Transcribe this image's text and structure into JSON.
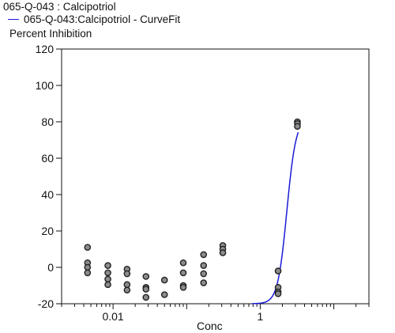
{
  "chart_data": {
    "type": "scatter",
    "title": "065-Q-043  : Calcipotriol",
    "ylabel": "Percent Inhibition",
    "xlabel": "Conc",
    "x_scale": "log",
    "xlim": [
      0.002,
      30
    ],
    "ylim": [
      -20,
      120
    ],
    "y_ticks": [
      -20,
      0,
      20,
      40,
      60,
      80,
      100,
      120
    ],
    "x_tick_labels": [
      {
        "value": 0.01,
        "label": "0.01"
      },
      {
        "value": 1,
        "label": "1"
      }
    ],
    "grid": false,
    "series": [
      {
        "name": "065-Q-043  : Calcipotriol",
        "kind": "points",
        "color": "#8c8c8c",
        "points": [
          [
            0.0045,
            11
          ],
          [
            0.0045,
            2.5
          ],
          [
            0.0045,
            0
          ],
          [
            0.0045,
            -3
          ],
          [
            0.0085,
            1
          ],
          [
            0.0085,
            -3
          ],
          [
            0.0085,
            -6.5
          ],
          [
            0.0085,
            -9.5
          ],
          [
            0.0155,
            -1
          ],
          [
            0.0155,
            -3.5
          ],
          [
            0.0155,
            -9.5
          ],
          [
            0.0155,
            -12.5
          ],
          [
            0.028,
            -5
          ],
          [
            0.028,
            -11
          ],
          [
            0.028,
            -12
          ],
          [
            0.028,
            -16.5
          ],
          [
            0.05,
            -7
          ],
          [
            0.05,
            -15
          ],
          [
            0.09,
            2.5
          ],
          [
            0.09,
            -3
          ],
          [
            0.09,
            -10
          ],
          [
            0.09,
            -11
          ],
          [
            0.17,
            7
          ],
          [
            0.17,
            1
          ],
          [
            0.17,
            -3.5
          ],
          [
            0.17,
            -8.5
          ],
          [
            0.31,
            12
          ],
          [
            0.31,
            10
          ],
          [
            0.31,
            8
          ],
          [
            1.75,
            -2
          ],
          [
            1.75,
            -11
          ],
          [
            1.75,
            -13.5
          ],
          [
            1.75,
            -14.5
          ],
          [
            3.2,
            80
          ],
          [
            3.2,
            79
          ],
          [
            3.2,
            77.5
          ]
        ]
      },
      {
        "name": "065-Q-043:Calcipotriol - CurveFit",
        "kind": "curve",
        "color": "#1a1ad6",
        "top": 82,
        "bottom": -20,
        "ec50": 2.3,
        "hill": 7
      }
    ]
  }
}
